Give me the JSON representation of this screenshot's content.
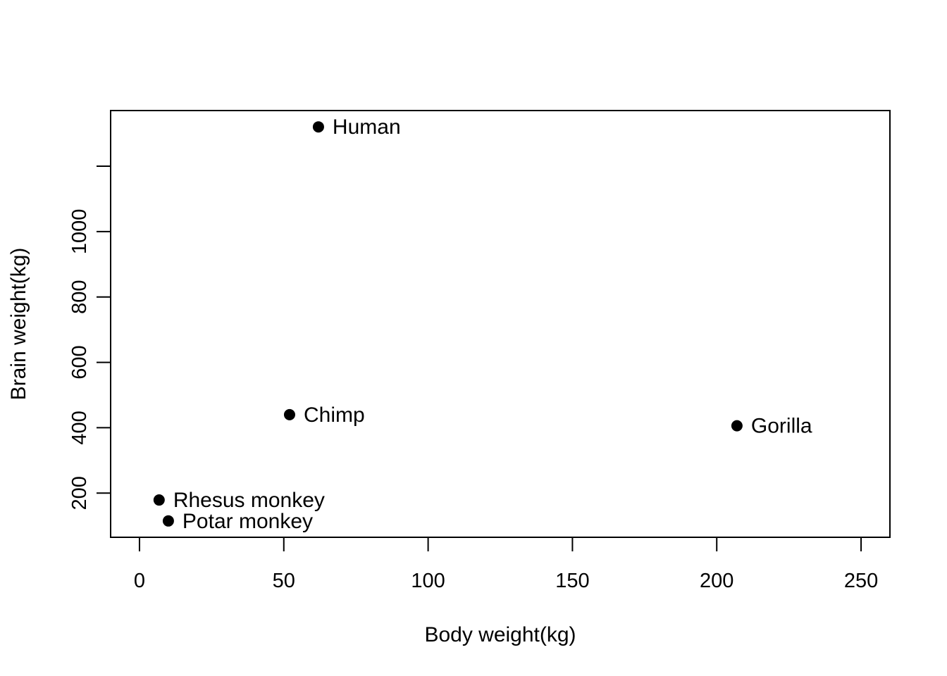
{
  "chart_data": {
    "type": "scatter",
    "title": "",
    "xlabel": "Body weight(kg)",
    "ylabel": "Brain weight(kg)",
    "xlim": [
      -10,
      260
    ],
    "ylim": [
      65,
      1370
    ],
    "x_ticks": [
      0,
      50,
      100,
      150,
      200,
      250
    ],
    "y_ticks": [
      200,
      400,
      600,
      800,
      1000,
      1200
    ],
    "y_tick_labels": [
      "200",
      "400",
      "600",
      "800",
      "1000",
      ""
    ],
    "grid": false,
    "legend": "none",
    "points": [
      {
        "label": "Human",
        "x": 62,
        "y": 1320
      },
      {
        "label": "Chimp",
        "x": 52,
        "y": 440
      },
      {
        "label": "Gorilla",
        "x": 207,
        "y": 406
      },
      {
        "label": "Rhesus monkey",
        "x": 6.8,
        "y": 179
      },
      {
        "label": "Potar monkey",
        "x": 10,
        "y": 115
      }
    ],
    "colors": {
      "point": "#000000",
      "axis": "#000000",
      "background": "#ffffff"
    }
  }
}
